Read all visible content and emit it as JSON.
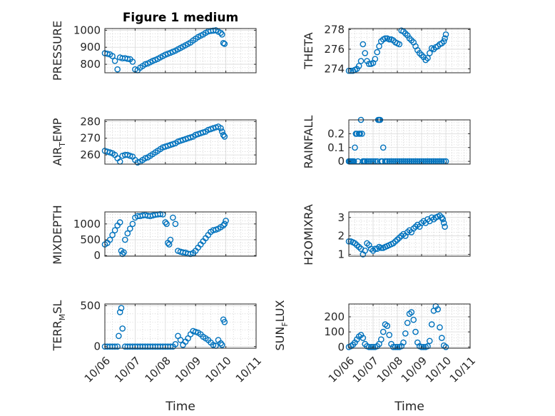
{
  "figure": {
    "title": "Figure 1 medium",
    "xlabel": "Time",
    "x_tick_labels": [
      "10/06",
      "10/07",
      "10/08",
      "10/09",
      "10/10",
      "10/11"
    ],
    "colors": {
      "marker": "#0072BD",
      "axis": "#262626",
      "grid": "#b3b3b3"
    }
  },
  "chart_data": [
    {
      "type": "scatter",
      "ylabel": "PRESSURE",
      "title": "Figure 1 medium",
      "xlim": [
        "10/06",
        "10/11"
      ],
      "ylim": [
        750,
        1010
      ],
      "yticks": [
        800,
        900,
        1000
      ],
      "x": [
        "10/06 00:00",
        "10/06 02:00",
        "10/06 04:00",
        "10/06 06:00",
        "10/06 08:00",
        "10/06 10:00",
        "10/06 12:00",
        "10/06 14:00",
        "10/06 16:00",
        "10/06 18:00",
        "10/06 20:00",
        "10/06 22:00",
        "10/07 00:00",
        "10/07 02:00",
        "10/07 04:00",
        "10/07 06:00",
        "10/07 08:00",
        "10/07 10:00",
        "10/07 12:00",
        "10/07 14:00",
        "10/07 16:00",
        "10/07 18:00",
        "10/07 20:00",
        "10/07 22:00",
        "10/08 00:00",
        "10/08 02:00",
        "10/08 04:00",
        "10/08 06:00",
        "10/08 08:00",
        "10/08 10:00",
        "10/08 12:00",
        "10/08 14:00",
        "10/08 16:00",
        "10/08 18:00",
        "10/08 20:00",
        "10/08 22:00",
        "10/09 00:00",
        "10/09 02:00",
        "10/09 04:00",
        "10/09 06:00",
        "10/09 08:00",
        "10/09 10:00",
        "10/09 12:00",
        "10/09 14:00",
        "10/09 16:00",
        "10/09 18:00",
        "10/09 20:00",
        "10/09 21:00",
        "10/09 22:00",
        "10/09 23:00"
      ],
      "y": [
        865,
        862,
        858,
        848,
        820,
        770,
        840,
        835,
        836,
        832,
        830,
        815,
        770,
        765,
        780,
        790,
        800,
        805,
        812,
        820,
        826,
        832,
        840,
        848,
        856,
        862,
        868,
        874,
        880,
        888,
        896,
        904,
        912,
        920,
        928,
        940,
        950,
        960,
        968,
        975,
        985,
        993,
        996,
        998,
        1000,
        992,
        985,
        975,
        925,
        920
      ]
    },
    {
      "type": "scatter",
      "ylabel": "THETA",
      "xlim": [
        "10/06",
        "10/11"
      ],
      "ylim": [
        273.6,
        278.1
      ],
      "yticks": [
        274,
        276,
        278
      ],
      "x": [
        "10/06 00:00",
        "10/06 02:00",
        "10/06 04:00",
        "10/06 06:00",
        "10/06 08:00",
        "10/06 10:00",
        "10/06 12:00",
        "10/06 14:00",
        "10/06 16:00",
        "10/06 18:00",
        "10/06 20:00",
        "10/06 22:00",
        "10/07 00:00",
        "10/07 02:00",
        "10/07 04:00",
        "10/07 06:00",
        "10/07 08:00",
        "10/07 10:00",
        "10/07 12:00",
        "10/07 14:00",
        "10/07 16:00",
        "10/07 18:00",
        "10/07 20:00",
        "10/07 22:00",
        "10/08 00:00",
        "10/08 02:00",
        "10/08 04:00",
        "10/08 06:00",
        "10/08 08:00",
        "10/08 10:00",
        "10/08 12:00",
        "10/08 14:00",
        "10/08 16:00",
        "10/08 18:00",
        "10/08 20:00",
        "10/08 22:00",
        "10/09 00:00",
        "10/09 02:00",
        "10/09 04:00",
        "10/09 06:00",
        "10/09 08:00",
        "10/09 10:00",
        "10/09 12:00",
        "10/09 14:00",
        "10/09 16:00",
        "10/09 18:00",
        "10/09 20:00",
        "10/09 22:00",
        "10/09 23:00",
        "10/10 00:00"
      ],
      "y": [
        273.8,
        273.8,
        273.8,
        273.9,
        274.0,
        274.3,
        274.8,
        276.5,
        275.6,
        274.8,
        274.5,
        274.5,
        274.6,
        275.0,
        275.7,
        276.3,
        276.8,
        277.0,
        277.1,
        277.1,
        277.0,
        277.0,
        276.9,
        276.7,
        276.6,
        276.5,
        277.9,
        277.8,
        277.6,
        277.4,
        277.1,
        276.9,
        276.7,
        276.3,
        275.9,
        275.6,
        275.4,
        275.2,
        274.9,
        275.1,
        275.6,
        276.1,
        276.0,
        276.2,
        276.3,
        276.5,
        276.6,
        276.8,
        277.1,
        277.5
      ]
    },
    {
      "type": "scatter",
      "ylabel": "AIR_TEMP",
      "ylabel_parts": {
        "main": "AIR",
        "sub": "T",
        "rest": "EMP"
      },
      "xlim": [
        "10/06",
        "10/11"
      ],
      "ylim": [
        254.5,
        281
      ],
      "yticks": [
        260,
        270,
        280
      ],
      "x": [
        "10/06 00:00",
        "10/06 02:00",
        "10/06 04:00",
        "10/06 06:00",
        "10/06 08:00",
        "10/06 10:00",
        "10/06 12:00",
        "10/06 14:00",
        "10/06 16:00",
        "10/06 18:00",
        "10/06 20:00",
        "10/06 22:00",
        "10/07 00:00",
        "10/07 02:00",
        "10/07 04:00",
        "10/07 06:00",
        "10/07 08:00",
        "10/07 10:00",
        "10/07 12:00",
        "10/07 14:00",
        "10/07 16:00",
        "10/07 18:00",
        "10/07 20:00",
        "10/07 22:00",
        "10/08 00:00",
        "10/08 02:00",
        "10/08 04:00",
        "10/08 06:00",
        "10/08 08:00",
        "10/08 10:00",
        "10/08 12:00",
        "10/08 14:00",
        "10/08 16:00",
        "10/08 18:00",
        "10/08 20:00",
        "10/08 22:00",
        "10/09 00:00",
        "10/09 02:00",
        "10/09 04:00",
        "10/09 06:00",
        "10/09 08:00",
        "10/09 10:00",
        "10/09 12:00",
        "10/09 14:00",
        "10/09 16:00",
        "10/09 18:00",
        "10/09 20:00",
        "10/09 21:00",
        "10/09 22:00",
        "10/09 23:00"
      ],
      "y": [
        262.5,
        262,
        261.5,
        261,
        260,
        258,
        256,
        259.5,
        260,
        260,
        259.5,
        259,
        257,
        255.5,
        256,
        257,
        258,
        258.5,
        259.5,
        260.5,
        261.5,
        262.5,
        263.5,
        264.5,
        265,
        265.5,
        266,
        266.5,
        267,
        268,
        268.5,
        269,
        269.5,
        270,
        270.5,
        271,
        272,
        272.5,
        273,
        273.5,
        274,
        275,
        275.5,
        276,
        276.5,
        277,
        276,
        274,
        272,
        271
      ]
    },
    {
      "type": "scatter",
      "ylabel": "RAINFALL",
      "xlim": [
        "10/06",
        "10/11"
      ],
      "ylim": [
        -0.02,
        0.3
      ],
      "yticks": [
        0,
        0.1,
        0.2
      ],
      "ytick_labels": [
        "0",
        "0.1",
        "0.2"
      ],
      "x": [
        "10/06 00:00",
        "10/06 01:00",
        "10/06 02:00",
        "10/06 03:00",
        "10/06 04:00",
        "10/06 05:00",
        "10/06 06:00",
        "10/06 07:00",
        "10/06 08:00",
        "10/06 09:00",
        "10/06 10:00",
        "10/06 11:00",
        "10/06 12:00",
        "10/06 13:00",
        "10/06 14:00",
        "10/06 15:00",
        "10/06 16:00",
        "10/06 18:00",
        "10/06 20:00",
        "10/06 22:00",
        "10/07 00:00",
        "10/07 02:00",
        "10/07 04:00",
        "10/07 05:00",
        "10/07 06:00",
        "10/07 07:00",
        "10/07 08:00",
        "10/07 09:00",
        "10/07 10:00",
        "10/07 12:00",
        "10/07 14:00",
        "10/07 16:00",
        "10/07 18:00",
        "10/07 20:00",
        "10/07 22:00",
        "10/08 00:00",
        "10/08 02:00",
        "10/08 04:00",
        "10/08 06:00",
        "10/08 08:00",
        "10/08 10:00",
        "10/08 12:00",
        "10/08 14:00",
        "10/08 16:00",
        "10/08 18:00",
        "10/08 20:00",
        "10/08 22:00",
        "10/09 00:00",
        "10/09 02:00",
        "10/09 04:00",
        "10/09 06:00",
        "10/09 08:00",
        "10/09 10:00",
        "10/09 12:00",
        "10/09 14:00",
        "10/09 16:00",
        "10/09 18:00",
        "10/09 20:00",
        "10/09 22:00",
        "10/10 00:00"
      ],
      "y": [
        0,
        0,
        0,
        0,
        0,
        0,
        0.1,
        0.2,
        0.2,
        0,
        0.2,
        0.2,
        0.3,
        0.2,
        0,
        0,
        0,
        0,
        0,
        0,
        0,
        0,
        0,
        0.3,
        0.3,
        0.3,
        0,
        0,
        0.1,
        0,
        0,
        0,
        0,
        0,
        0,
        0,
        0,
        0,
        0,
        0,
        0,
        0,
        0,
        0,
        0,
        0,
        0,
        0,
        0,
        0,
        0,
        0,
        0,
        0,
        0,
        0,
        0,
        0,
        0,
        0
      ]
    },
    {
      "type": "scatter",
      "ylabel": "MIXDEPTH",
      "xlim": [
        "10/06",
        "10/11"
      ],
      "ylim": [
        -20,
        1380
      ],
      "yticks": [
        0,
        500,
        1000
      ],
      "x": [
        "10/06 00:00",
        "10/06 02:00",
        "10/06 04:00",
        "10/06 06:00",
        "10/06 08:00",
        "10/06 10:00",
        "10/06 12:00",
        "10/06 13:00",
        "10/06 14:00",
        "10/06 15:00",
        "10/06 16:00",
        "10/06 18:00",
        "10/06 20:00",
        "10/06 22:00",
        "10/07 00:00",
        "10/07 02:00",
        "10/07 04:00",
        "10/07 06:00",
        "10/07 08:00",
        "10/07 10:00",
        "10/07 12:00",
        "10/07 14:00",
        "10/07 16:00",
        "10/07 18:00",
        "10/07 20:00",
        "10/07 22:00",
        "10/08 00:00",
        "10/08 01:00",
        "10/08 02:00",
        "10/08 03:00",
        "10/08 04:00",
        "10/08 06:00",
        "10/08 08:00",
        "10/08 10:00",
        "10/08 12:00",
        "10/08 14:00",
        "10/08 16:00",
        "10/08 18:00",
        "10/08 20:00",
        "10/08 22:00",
        "10/09 00:00",
        "10/09 02:00",
        "10/09 04:00",
        "10/09 06:00",
        "10/09 08:00",
        "10/09 10:00",
        "10/09 12:00",
        "10/09 14:00",
        "10/09 16:00",
        "10/09 18:00",
        "10/09 20:00",
        "10/09 22:00",
        "10/09 23:00",
        "10/10 00:00"
      ],
      "y": [
        350,
        400,
        500,
        650,
        800,
        950,
        1050,
        150,
        50,
        100,
        500,
        700,
        850,
        1000,
        1200,
        1250,
        1250,
        1270,
        1280,
        1260,
        1250,
        1270,
        1290,
        1300,
        1310,
        1300,
        1050,
        1000,
        400,
        350,
        500,
        1200,
        1000,
        150,
        120,
        100,
        90,
        60,
        50,
        80,
        150,
        250,
        350,
        450,
        550,
        650,
        750,
        800,
        820,
        850,
        900,
        950,
        1000,
        1100
      ]
    },
    {
      "type": "scatter",
      "ylabel": "H2OMIXRA",
      "xlim": [
        "10/06",
        "10/11"
      ],
      "ylim": [
        0.9,
        3.3
      ],
      "yticks": [
        1,
        2,
        3
      ],
      "x": [
        "10/06 00:00",
        "10/06 02:00",
        "10/06 04:00",
        "10/06 06:00",
        "10/06 08:00",
        "10/06 10:00",
        "10/06 12:00",
        "10/06 14:00",
        "10/06 16:00",
        "10/06 18:00",
        "10/06 20:00",
        "10/06 22:00",
        "10/07 00:00",
        "10/07 02:00",
        "10/07 04:00",
        "10/07 06:00",
        "10/07 08:00",
        "10/07 10:00",
        "10/07 12:00",
        "10/07 14:00",
        "10/07 16:00",
        "10/07 18:00",
        "10/07 20:00",
        "10/07 22:00",
        "10/08 00:00",
        "10/08 02:00",
        "10/08 04:00",
        "10/08 06:00",
        "10/08 08:00",
        "10/08 10:00",
        "10/08 12:00",
        "10/08 14:00",
        "10/08 16:00",
        "10/08 18:00",
        "10/08 20:00",
        "10/08 22:00",
        "10/09 00:00",
        "10/09 02:00",
        "10/09 04:00",
        "10/09 06:00",
        "10/09 08:00",
        "10/09 10:00",
        "10/09 12:00",
        "10/09 14:00",
        "10/09 16:00",
        "10/09 18:00",
        "10/09 20:00",
        "10/09 21:00",
        "10/09 22:00",
        "10/09 23:00"
      ],
      "y": [
        1.7,
        1.7,
        1.65,
        1.6,
        1.5,
        1.4,
        1.3,
        1.0,
        1.2,
        1.6,
        1.5,
        1.3,
        1.2,
        1.3,
        1.3,
        1.4,
        1.35,
        1.35,
        1.4,
        1.45,
        1.5,
        1.55,
        1.6,
        1.7,
        1.8,
        1.9,
        2.0,
        2.1,
        2.0,
        2.2,
        2.3,
        2.2,
        2.4,
        2.5,
        2.6,
        2.5,
        2.7,
        2.8,
        2.7,
        2.9,
        2.8,
        3.0,
        2.9,
        3.0,
        3.05,
        3.1,
        3.0,
        2.9,
        2.7,
        2.5
      ]
    },
    {
      "type": "scatter",
      "ylabel": "TERR_MSL",
      "ylabel_parts": {
        "main": "TERR",
        "sub": "M",
        "rest": "SL"
      },
      "xlim": [
        "10/06",
        "10/11"
      ],
      "ylim": [
        -20,
        520
      ],
      "yticks": [
        0,
        500
      ],
      "x": [
        "10/06 00:00",
        "10/06 02:00",
        "10/06 04:00",
        "10/06 06:00",
        "10/06 08:00",
        "10/06 10:00",
        "10/06 11:00",
        "10/06 12:00",
        "10/06 13:00",
        "10/06 14:00",
        "10/06 16:00",
        "10/06 18:00",
        "10/06 20:00",
        "10/06 22:00",
        "10/07 00:00",
        "10/07 02:00",
        "10/07 04:00",
        "10/07 06:00",
        "10/07 08:00",
        "10/07 10:00",
        "10/07 12:00",
        "10/07 14:00",
        "10/07 16:00",
        "10/07 18:00",
        "10/07 20:00",
        "10/07 22:00",
        "10/08 00:00",
        "10/08 02:00",
        "10/08 04:00",
        "10/08 06:00",
        "10/08 08:00",
        "10/08 10:00",
        "10/08 12:00",
        "10/08 14:00",
        "10/08 16:00",
        "10/08 18:00",
        "10/08 20:00",
        "10/08 22:00",
        "10/09 00:00",
        "10/09 02:00",
        "10/09 04:00",
        "10/09 06:00",
        "10/09 08:00",
        "10/09 10:00",
        "10/09 12:00",
        "10/09 14:00",
        "10/09 16:00",
        "10/09 18:00",
        "10/09 20:00",
        "10/09 21:00",
        "10/09 22:00",
        "10/09 23:00"
      ],
      "y": [
        0,
        0,
        0,
        0,
        0,
        0,
        130,
        420,
        470,
        220,
        0,
        0,
        0,
        0,
        0,
        0,
        0,
        0,
        0,
        0,
        0,
        0,
        0,
        0,
        0,
        0,
        0,
        0,
        0,
        0,
        30,
        130,
        80,
        20,
        60,
        100,
        150,
        190,
        180,
        170,
        150,
        120,
        100,
        80,
        50,
        20,
        10,
        80,
        40,
        20,
        330,
        300
      ]
    },
    {
      "type": "scatter",
      "ylabel": "SUN_FLUX",
      "ylabel_parts": {
        "main": "SUN",
        "sub": "F",
        "rest": "LUX"
      },
      "xlim": [
        "10/06",
        "10/11"
      ],
      "ylim": [
        -8,
        285
      ],
      "yticks": [
        0,
        100,
        200
      ],
      "x": [
        "10/06 00:00",
        "10/06 02:00",
        "10/06 04:00",
        "10/06 06:00",
        "10/06 08:00",
        "10/06 10:00",
        "10/06 12:00",
        "10/06 14:00",
        "10/06 16:00",
        "10/06 18:00",
        "10/06 20:00",
        "10/06 22:00",
        "10/07 00:00",
        "10/07 02:00",
        "10/07 04:00",
        "10/07 06:00",
        "10/07 08:00",
        "10/07 10:00",
        "10/07 12:00",
        "10/07 14:00",
        "10/07 16:00",
        "10/07 18:00",
        "10/07 20:00",
        "10/07 22:00",
        "10/08 00:00",
        "10/08 02:00",
        "10/08 04:00",
        "10/08 06:00",
        "10/08 08:00",
        "10/08 10:00",
        "10/08 12:00",
        "10/08 14:00",
        "10/08 16:00",
        "10/08 18:00",
        "10/08 20:00",
        "10/08 22:00",
        "10/09 00:00",
        "10/09 02:00",
        "10/09 04:00",
        "10/09 06:00",
        "10/09 08:00",
        "10/09 10:00",
        "10/09 12:00",
        "10/09 14:00",
        "10/09 16:00",
        "10/09 18:00",
        "10/09 20:00",
        "10/09 22:00",
        "10/10 00:00"
      ],
      "y": [
        0,
        5,
        15,
        30,
        50,
        70,
        80,
        60,
        20,
        5,
        0,
        0,
        0,
        0,
        5,
        20,
        50,
        100,
        150,
        140,
        80,
        20,
        0,
        0,
        0,
        0,
        5,
        30,
        90,
        160,
        220,
        230,
        180,
        100,
        30,
        5,
        0,
        0,
        0,
        5,
        40,
        150,
        240,
        270,
        250,
        130,
        60,
        10,
        0
      ]
    }
  ]
}
